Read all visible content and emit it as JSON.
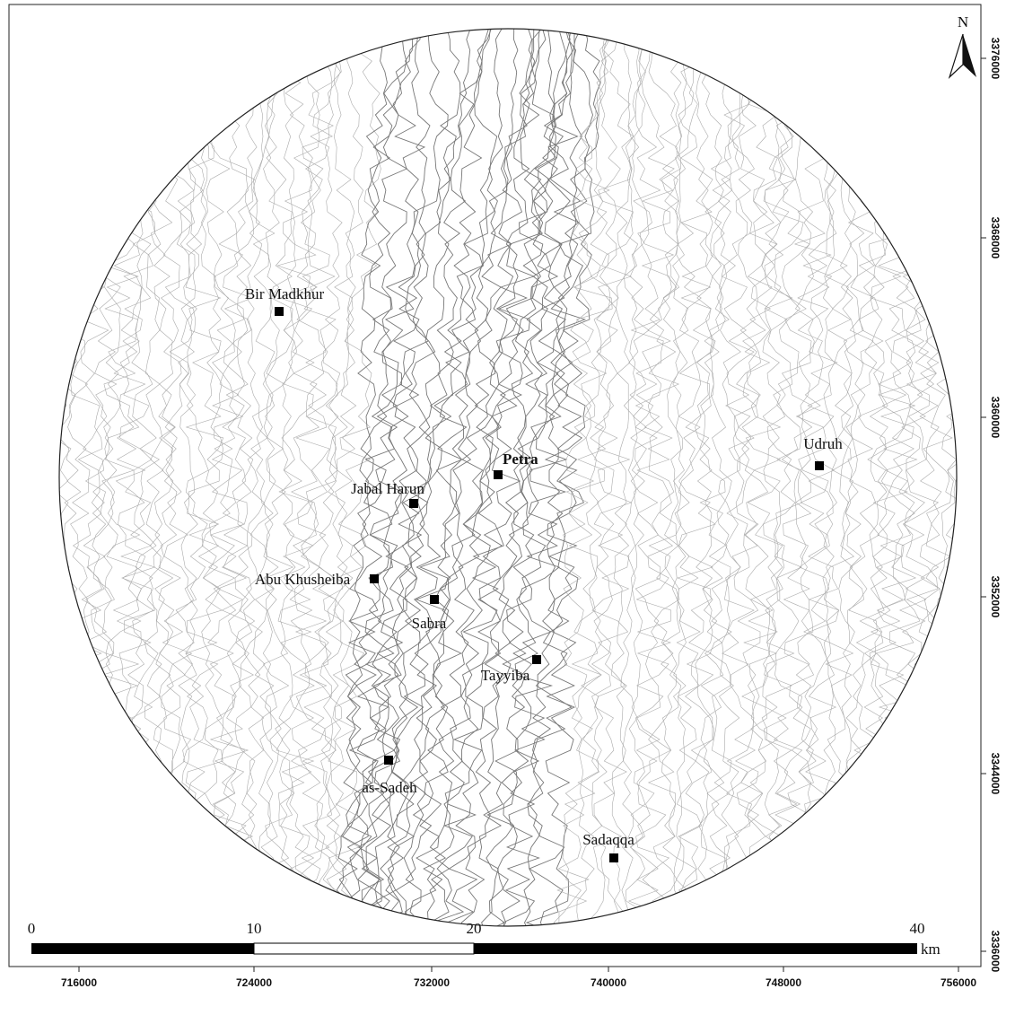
{
  "map": {
    "north": "N",
    "sites": [
      {
        "label": "Bir Madkhur",
        "bold": false
      },
      {
        "label": "Udruh",
        "bold": false
      },
      {
        "label": "Petra",
        "bold": true
      },
      {
        "label": "Jabal Harun",
        "bold": false
      },
      {
        "label": "Abu Khusheiba",
        "bold": false
      },
      {
        "label": "Sabra",
        "bold": false
      },
      {
        "label": "Tayyiba",
        "bold": false
      },
      {
        "label": "as-Sadeh",
        "bold": false
      },
      {
        "label": "Sadaqqa",
        "bold": false
      }
    ],
    "scale_bar": {
      "labels": [
        0,
        10,
        20,
        40
      ],
      "unit": "km"
    },
    "x_ticks": [
      716000,
      724000,
      732000,
      740000,
      748000,
      756000
    ],
    "y_ticks": [
      3376000,
      3368000,
      3360000,
      3352000,
      3344000,
      3336000
    ]
  }
}
